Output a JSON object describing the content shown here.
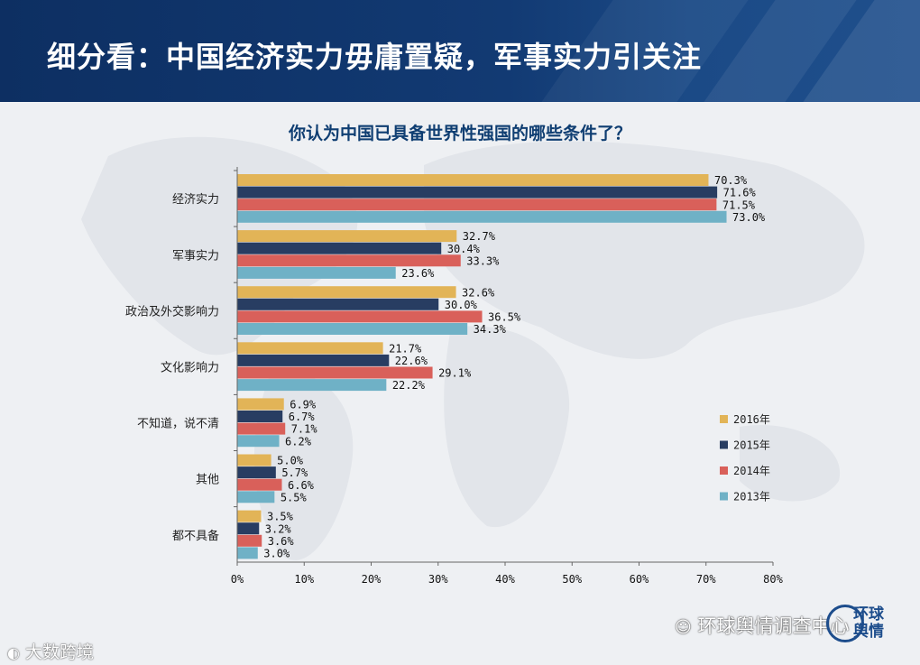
{
  "header": {
    "title": "细分看：中国经济实力毋庸置疑，军事实力引关注"
  },
  "chart_data": {
    "type": "bar",
    "orientation": "horizontal",
    "title": "你认为中国已具备世界性强国的哪些条件了？",
    "categories": [
      "经济实力",
      "军事实力",
      "政治及外交影响力",
      "文化影响力",
      "不知道，说不清",
      "其他",
      "都不具备"
    ],
    "series": [
      {
        "name": "2016年",
        "color": "#e2b457",
        "values": [
          70.3,
          32.7,
          32.6,
          21.7,
          6.9,
          5.0,
          3.5
        ],
        "labels": [
          "70.3%",
          "32.7%",
          "32.6%",
          "21.7%",
          "6.9%",
          "5.0%",
          "3.5%"
        ]
      },
      {
        "name": "2015年",
        "color": "#283d62",
        "values": [
          71.6,
          30.4,
          30.0,
          22.6,
          6.7,
          5.7,
          3.2
        ],
        "labels": [
          "71.6%",
          "30.4%",
          "30.0%",
          "22.6%",
          "6.7%",
          "5.7%",
          "3.2%"
        ]
      },
      {
        "name": "2014年",
        "color": "#d9605a",
        "values": [
          71.5,
          33.3,
          36.5,
          29.1,
          7.1,
          6.6,
          3.6
        ],
        "labels": [
          "71.5%",
          "33.3%",
          "36.5%",
          "29.1%",
          "7.1%",
          "6.6%",
          "3.6%"
        ]
      },
      {
        "name": "2013年",
        "color": "#6fb1c6",
        "values": [
          73.0,
          23.6,
          34.3,
          22.2,
          6.2,
          5.5,
          3.0
        ],
        "labels": [
          "73.0%",
          "23.6%",
          "34.3%",
          "22.2%",
          "6.2%",
          "5.5%",
          "3.0%"
        ]
      }
    ],
    "xlim": [
      0,
      80
    ],
    "xticks": [
      "0%",
      "10%",
      "20%",
      "30%",
      "40%",
      "50%",
      "60%",
      "70%",
      "80%"
    ],
    "legend_position": "right"
  },
  "footer": {
    "left_watermark": "大数跨境",
    "right_watermark": "环球舆情调查中心",
    "logo_text": "环球舆情"
  }
}
